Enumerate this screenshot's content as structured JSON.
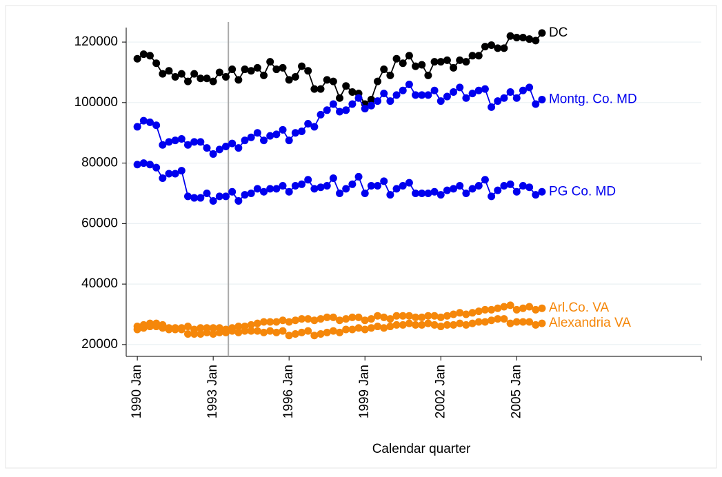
{
  "chart_data": {
    "type": "line",
    "x_label": "Calendar quarter",
    "x": [
      1990,
      1990.25,
      1990.5,
      1990.75,
      1991,
      1991.25,
      1991.5,
      1991.75,
      1992,
      1992.25,
      1992.5,
      1992.75,
      1993,
      1993.25,
      1993.5,
      1993.75,
      1994,
      1994.25,
      1994.5,
      1994.75,
      1995,
      1995.25,
      1995.5,
      1995.75,
      1996,
      1996.25,
      1996.5,
      1996.75,
      1997,
      1997.25,
      1997.5,
      1997.75,
      1998,
      1998.25,
      1998.5,
      1998.75,
      1999,
      1999.25,
      1999.5,
      1999.75,
      2000,
      2000.25,
      2000.5,
      2000.75,
      2001,
      2001.25,
      2001.5,
      2001.75,
      2002,
      2002.25,
      2002.5,
      2002.75,
      2003,
      2003.25,
      2003.5,
      2003.75,
      2004,
      2004.25,
      2004.5,
      2004.75,
      2005,
      2005.25,
      2005.5,
      2005.75,
      2006
    ],
    "xlim": [
      1989.56,
      2012.3
    ],
    "xticks": [
      {
        "value": 1990,
        "label": "1990 Jan"
      },
      {
        "value": 1993,
        "label": "1993 Jan"
      },
      {
        "value": 1996,
        "label": "1996 Jan"
      },
      {
        "value": 1999,
        "label": "1999 Jan"
      },
      {
        "value": 2002,
        "label": "2002 Jan"
      },
      {
        "value": 2005,
        "label": "2005 Jan"
      }
    ],
    "ylim": [
      16100,
      124800
    ],
    "yticks": [
      20000,
      40000,
      60000,
      80000,
      100000,
      120000
    ],
    "grid": true,
    "xline": 1993.6,
    "series": [
      {
        "name": "DC",
        "color": "#000000",
        "values": [
          114500,
          116000,
          115500,
          113000,
          109500,
          110500,
          108500,
          109500,
          107000,
          109500,
          108000,
          108000,
          107000,
          110000,
          108500,
          111000,
          107500,
          111000,
          110500,
          111500,
          109000,
          113500,
          111000,
          111500,
          107500,
          108500,
          112000,
          110500,
          104500,
          104500,
          107500,
          107000,
          101500,
          105500,
          103500,
          103000,
          99500,
          101000,
          107000,
          111000,
          109000,
          114500,
          113000,
          115500,
          112000,
          112500,
          109000,
          113500,
          113500,
          114000,
          111500,
          114000,
          113500,
          115500,
          115500,
          118500,
          119000,
          118000,
          118000,
          122000,
          121500,
          121500,
          121000,
          120500,
          123000
        ]
      },
      {
        "name": "Montg. Co. MD",
        "color": "#0000ee",
        "values": [
          92000,
          94000,
          93500,
          92500,
          86000,
          87000,
          87500,
          88000,
          86000,
          87000,
          87000,
          85000,
          83000,
          84500,
          85500,
          86500,
          85000,
          87500,
          88500,
          90000,
          87500,
          89000,
          89500,
          91000,
          87500,
          90000,
          90500,
          93000,
          92000,
          96000,
          97500,
          99500,
          97000,
          97500,
          99500,
          101500,
          98000,
          99000,
          100500,
          103000,
          100500,
          102500,
          104000,
          106000,
          102500,
          102500,
          102500,
          104000,
          100500,
          102000,
          103500,
          105000,
          101500,
          103000,
          104000,
          104500,
          98500,
          100500,
          101500,
          103500,
          101500,
          104000,
          105000,
          99500,
          101000
        ]
      },
      {
        "name": "PG Co. MD",
        "color": "#0000ee",
        "values": [
          79500,
          80000,
          79500,
          78500,
          75000,
          76500,
          76500,
          77500,
          69000,
          68500,
          68500,
          70000,
          67500,
          69000,
          69000,
          70500,
          67500,
          69500,
          70000,
          71500,
          70500,
          71500,
          71500,
          72500,
          70500,
          72500,
          73000,
          74500,
          71500,
          72000,
          72500,
          75000,
          70000,
          71500,
          73000,
          75500,
          70000,
          72500,
          72500,
          74000,
          69500,
          71500,
          72500,
          73500,
          70000,
          70000,
          70000,
          70500,
          69500,
          71000,
          71500,
          72500,
          70000,
          71500,
          72500,
          74500,
          69000,
          71000,
          72500,
          73000,
          70500,
          72500,
          72000,
          69500,
          70500
        ]
      },
      {
        "name": "Arl.Co. VA",
        "color": "#f5870a",
        "values": [
          26000,
          26500,
          27000,
          27000,
          26500,
          25500,
          25500,
          25500,
          26000,
          25000,
          25500,
          25500,
          25500,
          25500,
          25000,
          25500,
          26000,
          26000,
          26500,
          27000,
          27500,
          27500,
          27500,
          28000,
          27500,
          28000,
          28500,
          28500,
          28000,
          28500,
          29000,
          29000,
          28000,
          28500,
          29000,
          29000,
          28000,
          28500,
          29500,
          29000,
          28500,
          29500,
          29500,
          29500,
          29000,
          29000,
          29500,
          29500,
          29000,
          29500,
          30000,
          30500,
          30000,
          30500,
          31000,
          31500,
          31500,
          32000,
          32500,
          33000,
          31500,
          32000,
          32500,
          31500,
          32000
        ]
      },
      {
        "name": "Alexandria VA",
        "color": "#f5870a",
        "values": [
          25000,
          25500,
          26000,
          26000,
          25500,
          25000,
          25000,
          25000,
          23500,
          23500,
          23500,
          24000,
          23500,
          24000,
          24000,
          24500,
          24000,
          24500,
          24500,
          24500,
          24000,
          24500,
          24000,
          24500,
          23000,
          23500,
          24000,
          24500,
          23000,
          23500,
          24000,
          24500,
          24000,
          25000,
          25000,
          25500,
          25000,
          25500,
          26000,
          25500,
          26000,
          26500,
          26500,
          27000,
          26500,
          26500,
          27000,
          26500,
          26000,
          26500,
          26500,
          27000,
          26500,
          27000,
          27500,
          27500,
          28000,
          28500,
          28500,
          27000,
          27500,
          27500,
          27500,
          26500,
          27000
        ]
      }
    ]
  }
}
